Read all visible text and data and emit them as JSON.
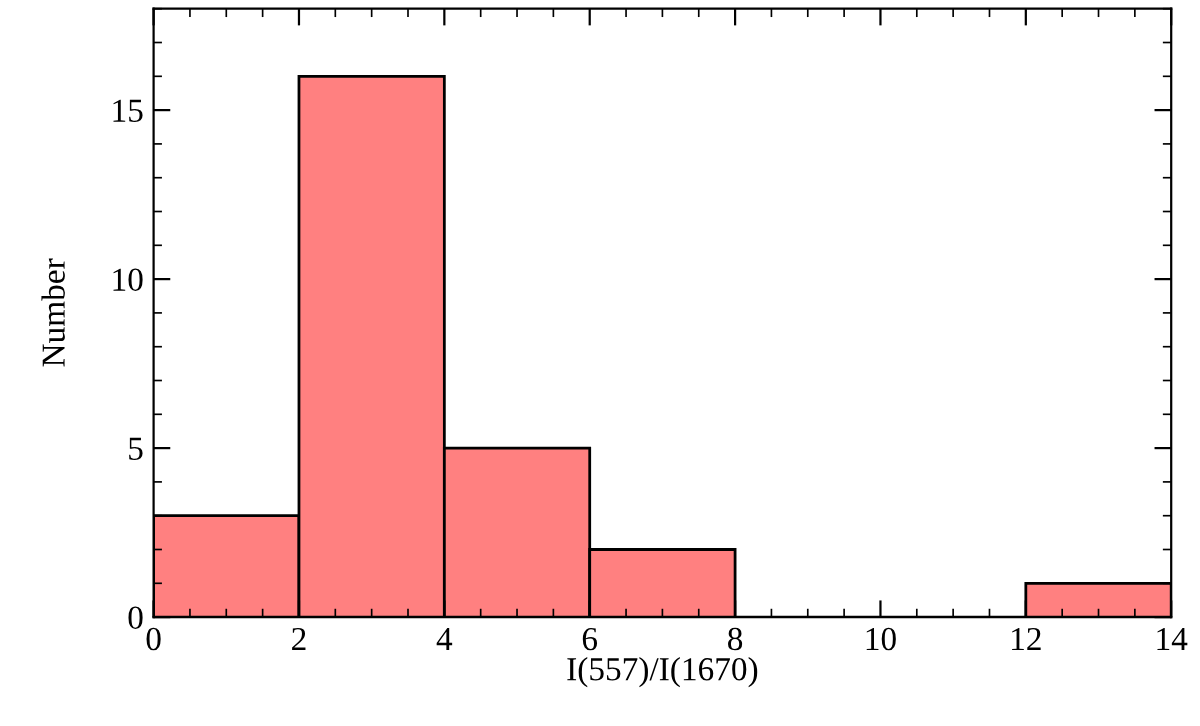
{
  "chart_data": {
    "type": "histogram",
    "xlabel": "I(557)/I(1670)",
    "ylabel": "Number",
    "bins": [
      0,
      2,
      4,
      6,
      8,
      10,
      12,
      14
    ],
    "values": [
      3,
      16,
      5,
      2,
      0,
      0,
      1
    ],
    "color": "#ff8080",
    "xlim": [
      0,
      14
    ],
    "ylim": [
      0,
      18
    ],
    "xticks": [
      0,
      2,
      4,
      6,
      8,
      10,
      12,
      14
    ],
    "yticks": [
      0,
      5,
      10,
      15
    ],
    "grid": false
  }
}
